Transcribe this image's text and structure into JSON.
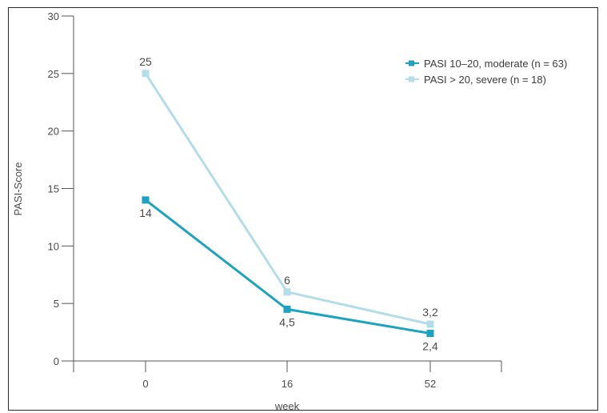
{
  "chart_data": {
    "type": "line",
    "xlabel": "week",
    "ylabel": "PASI-Score",
    "ylim": [
      0,
      30
    ],
    "yticks": [
      0,
      5,
      10,
      15,
      20,
      25,
      30
    ],
    "categories": [
      "0",
      "16",
      "52"
    ],
    "grid": false,
    "legend_position": "top-right",
    "series": [
      {
        "name": "PASI 10–20, moderate (n = 63)",
        "color": "#1ba3c0",
        "values": [
          14,
          4.5,
          2.4
        ],
        "labels": [
          "14",
          "4,5",
          "2,4"
        ],
        "label_side": [
          "below",
          "below",
          "below"
        ]
      },
      {
        "name": "PASI > 20, severe (n = 18)",
        "color": "#b2dde9",
        "values": [
          25,
          6,
          3.2
        ],
        "labels": [
          "25",
          "6",
          "3,2"
        ],
        "label_side": [
          "above",
          "above",
          "above"
        ]
      }
    ]
  }
}
